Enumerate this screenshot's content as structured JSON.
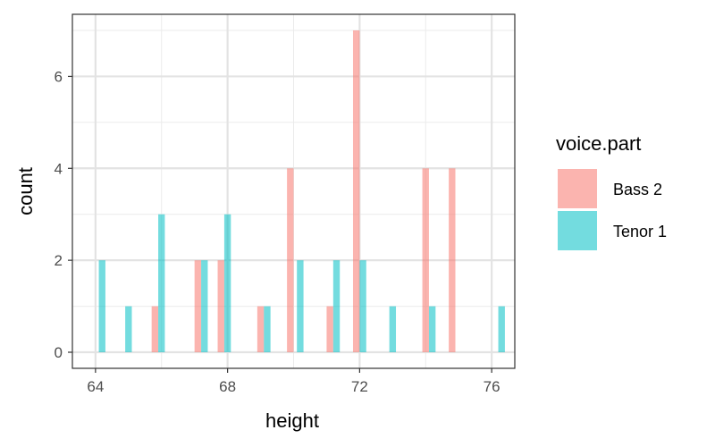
{
  "chart_data": {
    "type": "bar",
    "title": "",
    "xlabel": "height",
    "ylabel": "count",
    "xlim": [
      63.3,
      76.7
    ],
    "ylim": [
      -0.35,
      7.35
    ],
    "x_ticks": [
      64,
      68,
      72,
      76
    ],
    "y_ticks": [
      0,
      2,
      4,
      6
    ],
    "grid": true,
    "legend": {
      "title": "voice.part",
      "position": "right"
    },
    "series": [
      {
        "name": "Bass 2",
        "color": "#F8766D",
        "points": [
          {
            "x": 65.8,
            "y": 1
          },
          {
            "x": 67.1,
            "y": 2
          },
          {
            "x": 67.8,
            "y": 2
          },
          {
            "x": 69.0,
            "y": 1
          },
          {
            "x": 69.9,
            "y": 4
          },
          {
            "x": 71.1,
            "y": 1
          },
          {
            "x": 71.9,
            "y": 7
          },
          {
            "x": 74.0,
            "y": 4
          },
          {
            "x": 74.8,
            "y": 4
          }
        ]
      },
      {
        "name": "Tenor 1",
        "color": "#00BFC4",
        "points": [
          {
            "x": 64.2,
            "y": 2
          },
          {
            "x": 65.0,
            "y": 1
          },
          {
            "x": 66.0,
            "y": 3
          },
          {
            "x": 67.3,
            "y": 2
          },
          {
            "x": 68.0,
            "y": 3
          },
          {
            "x": 69.2,
            "y": 1
          },
          {
            "x": 70.2,
            "y": 2
          },
          {
            "x": 71.3,
            "y": 2
          },
          {
            "x": 72.1,
            "y": 2
          },
          {
            "x": 73.0,
            "y": 1
          },
          {
            "x": 74.2,
            "y": 1
          },
          {
            "x": 76.3,
            "y": 1
          }
        ]
      }
    ]
  }
}
